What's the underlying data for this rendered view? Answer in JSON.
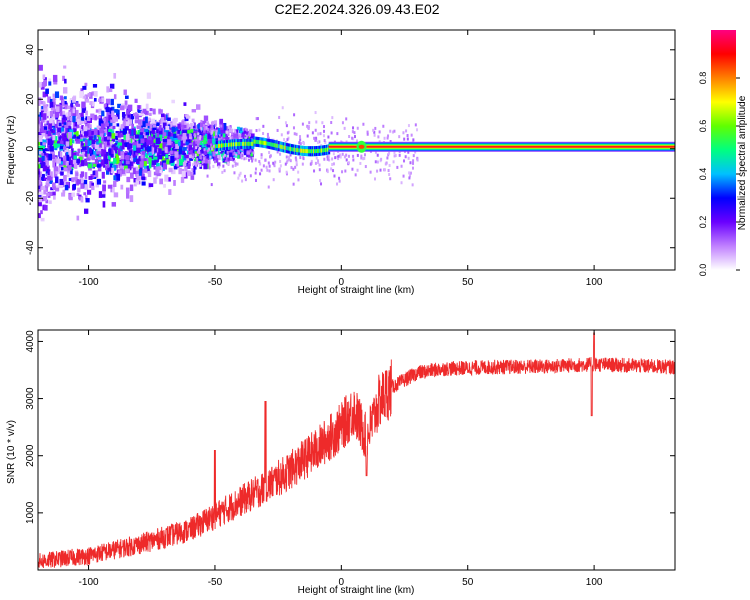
{
  "title": "C2E2.2024.326.09.43.E02",
  "chart_data": [
    {
      "type": "heatmap",
      "xlabel": "Height of straight line (km)",
      "ylabel": "Frequency (Hz)",
      "xlim": [
        -120,
        132
      ],
      "ylim": [
        -49,
        48
      ],
      "xticks": [
        -100,
        -50,
        0,
        50,
        100
      ],
      "yticks": [
        -40,
        -20,
        0,
        20,
        40
      ],
      "colorbar": {
        "label": "Normalized spectral amplitude",
        "range": [
          0,
          1
        ],
        "ticks": [
          "0.0",
          "0.2",
          "0.4",
          "0.6",
          "0.8"
        ],
        "colors": [
          "#ffffff",
          "#c080ff",
          "#6a00ff",
          "#0000ff",
          "#00c0ff",
          "#00ff80",
          "#60ff00",
          "#ffff00",
          "#ff8000",
          "#ff0000",
          "#ff0080"
        ]
      },
      "features": {
        "steady_line": {
          "x_start": -5,
          "x_end": 132,
          "freq_hz": 0.8,
          "amplitude": 0.92
        },
        "transition": {
          "x_start": -50,
          "x_end": -5,
          "freq_hz_range": [
            1,
            3
          ],
          "amplitude_range": [
            0.4,
            0.75
          ]
        },
        "scatter_region": {
          "x_start": -120,
          "x_end": -50,
          "freq_spread_hz": 48,
          "amplitude_range": [
            0.05,
            0.45
          ]
        }
      }
    },
    {
      "type": "line",
      "xlabel": "Height of straight line (km)",
      "ylabel": "SNR (10 * v/v)",
      "xlim": [
        -120,
        132
      ],
      "ylim": [
        0,
        4200
      ],
      "xticks": [
        -100,
        -50,
        0,
        50,
        100
      ],
      "yticks": [
        1000,
        2000,
        3000,
        4000
      ],
      "color": "#ee2a2a",
      "trend": [
        [
          -120,
          150
        ],
        [
          -100,
          250
        ],
        [
          -80,
          450
        ],
        [
          -60,
          700
        ],
        [
          -50,
          950
        ],
        [
          -40,
          1200
        ],
        [
          -30,
          1450
        ],
        [
          -20,
          1750
        ],
        [
          -10,
          2100
        ],
        [
          0,
          2500
        ],
        [
          5,
          2800
        ],
        [
          10,
          2300
        ],
        [
          15,
          2950
        ],
        [
          20,
          3200
        ],
        [
          30,
          3450
        ],
        [
          40,
          3520
        ],
        [
          60,
          3550
        ],
        [
          80,
          3560
        ],
        [
          100,
          3600
        ],
        [
          132,
          3550
        ]
      ],
      "spikes": [
        {
          "x": -30,
          "y": 2950
        },
        {
          "x": -50,
          "y": 2100
        },
        {
          "x": 10,
          "y": 1650
        },
        {
          "x": 100,
          "y": 4150
        },
        {
          "x": 99,
          "y": 2700
        }
      ]
    }
  ]
}
